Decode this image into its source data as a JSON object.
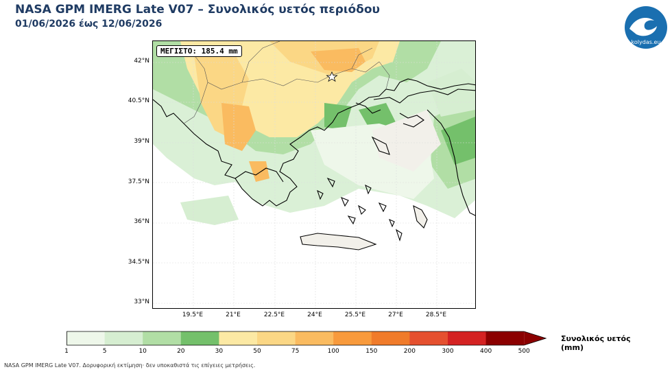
{
  "header": {
    "title": "NASA GPM IMERG Late V07 – Συνολικός υετός περιόδου",
    "subtitle": "01/06/2026 έως 12/06/2026"
  },
  "logo": {
    "text": "kolydas.eu",
    "icon": "wave-logo-icon",
    "color": "#1a6fb0"
  },
  "map": {
    "max_label": "ΜΕΓΙΣΤΟ: 185.4 mm",
    "lat_labels": [
      "42°N",
      "40.5°N",
      "39°N",
      "37.5°N",
      "36°N",
      "34.5°N",
      "33°N"
    ],
    "lon_labels": [
      "19.5°E",
      "21°E",
      "22.5°E",
      "24°E",
      "25.5°E",
      "27°E",
      "28.5°E"
    ]
  },
  "colorbar": {
    "ticks": [
      "1",
      "5",
      "10",
      "20",
      "30",
      "50",
      "75",
      "100",
      "150",
      "200",
      "300",
      "400",
      "500"
    ],
    "colors": [
      "#eef7ea",
      "#d6eed1",
      "#b1dea5",
      "#74c06b",
      "#fce9a4",
      "#fbd785",
      "#fabb60",
      "#f89a3c",
      "#f07b2a",
      "#e5502f",
      "#d42222",
      "#8b0000"
    ],
    "label_line1": "Συνολικός υετός",
    "label_line2": "(mm)"
  },
  "footnote": "NASA GPM IMERG Late V07. Δορυφορική εκτίμηση· δεν υποκαθιστά τις επίγειες μετρήσεις."
}
